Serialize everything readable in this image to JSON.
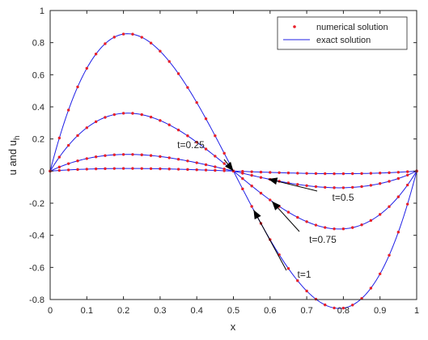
{
  "chart_data": {
    "type": "line",
    "xlabel": "x",
    "ylabel": "u and u",
    "ylabel_subscript": "h",
    "xlim": [
      0,
      1
    ],
    "ylim": [
      -0.8,
      1
    ],
    "xticks": [
      0,
      0.1,
      0.2,
      0.3,
      0.4,
      0.5,
      0.6,
      0.7,
      0.8,
      0.9,
      1
    ],
    "xtick_labels": [
      "0",
      "0.1",
      "0.2",
      "0.3",
      "0.4",
      "0.5",
      "0.6",
      "0.7",
      "0.8",
      "0.9",
      "1"
    ],
    "yticks": [
      -0.8,
      -0.6,
      -0.4,
      -0.2,
      0,
      0.2,
      0.4,
      0.6,
      0.8,
      1
    ],
    "ytick_labels": [
      "-0.8",
      "-0.6",
      "-0.4",
      "-0.2",
      "0",
      "0.2",
      "0.4",
      "0.6",
      "0.8",
      "1"
    ],
    "grid": false,
    "legend": {
      "position": "top-right",
      "entries": [
        {
          "label": "numerical solution",
          "marker": "dot",
          "color": "#e8202a"
        },
        {
          "label": "exact solution",
          "marker": "line",
          "color": "#1f1fe6"
        }
      ]
    },
    "series_form": "u(x) = A(x - 3x^2 + 2x^3), 0 <= x <= 1",
    "series": [
      {
        "time_label": "t=1",
        "amplitude": 8.89,
        "color": "#1f1fe6",
        "points_color": "#e8202a"
      },
      {
        "time_label": "t=0.75",
        "amplitude": 3.75,
        "color": "#1f1fe6",
        "points_color": "#e8202a"
      },
      {
        "time_label": "t=0.5",
        "amplitude": 1.08,
        "color": "#1f1fe6",
        "points_color": "#e8202a"
      },
      {
        "time_label": "t=0.25",
        "amplitude": 0.17,
        "color": "#1f1fe6",
        "points_color": "#e8202a"
      }
    ],
    "numerical_points_x_step": 0.025,
    "annotations": [
      {
        "text": "t=0.25",
        "target_x": 0.5,
        "target_series": 3
      },
      {
        "text": "t=0.5",
        "target_x": 0.595,
        "target_series": 2
      },
      {
        "text": "t=0.75",
        "target_x": 0.605,
        "target_series": 1
      },
      {
        "text": "t=1",
        "target_x": 0.555,
        "target_series": 0
      }
    ]
  }
}
